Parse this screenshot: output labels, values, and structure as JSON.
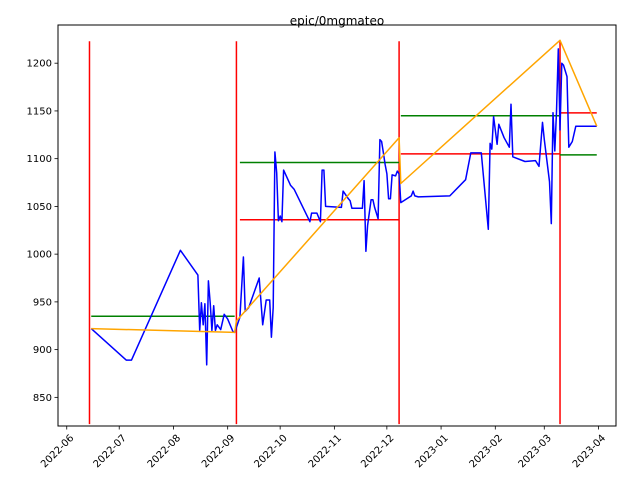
{
  "chart_data": {
    "type": "line",
    "title": "epic/0mgmateo",
    "xlabel": "",
    "ylabel": "",
    "x_axis": {
      "kind": "date",
      "range": [
        "2022-05-27",
        "2023-04-11"
      ],
      "ticks": [
        "2022-06-01",
        "2022-07-01",
        "2022-08-01",
        "2022-09-01",
        "2022-10-01",
        "2022-11-01",
        "2022-12-01",
        "2023-01-01",
        "2023-02-01",
        "2023-03-01",
        "2023-04-01"
      ],
      "tick_labels": [
        "2022-06",
        "2022-07",
        "2022-08",
        "2022-09",
        "2022-10",
        "2022-11",
        "2022-12",
        "2023-01",
        "2023-02",
        "2023-03",
        "2023-04"
      ]
    },
    "y_axis": {
      "range": [
        820,
        1240
      ],
      "ticks": [
        850,
        900,
        950,
        1000,
        1050,
        1100,
        1150,
        1200
      ],
      "tick_labels": [
        "850",
        "900",
        "950",
        "1000",
        "1050",
        "1100",
        "1150",
        "1200"
      ]
    },
    "grid": false,
    "legend": "none",
    "colors": {
      "price": "#0000ff",
      "trend": "#ffa500",
      "segment_boundary": "#ff0000",
      "segment_level_red": "#ff0000",
      "segment_level_green": "#008000"
    },
    "series": [
      {
        "role": "price",
        "color": "#0000ff",
        "points": [
          [
            "2022-06-15",
            922
          ],
          [
            "2022-07-05",
            889
          ],
          [
            "2022-07-08",
            889
          ],
          [
            "2022-08-05",
            1004
          ],
          [
            "2022-08-15",
            978
          ],
          [
            "2022-08-16",
            920
          ],
          [
            "2022-08-17",
            949
          ],
          [
            "2022-08-18",
            926
          ],
          [
            "2022-08-19",
            948
          ],
          [
            "2022-08-20",
            884
          ],
          [
            "2022-08-21",
            972
          ],
          [
            "2022-08-22",
            949
          ],
          [
            "2022-08-23",
            920
          ],
          [
            "2022-08-24",
            946
          ],
          [
            "2022-08-25",
            920
          ],
          [
            "2022-08-26",
            926
          ],
          [
            "2022-08-28",
            921
          ],
          [
            "2022-08-30",
            937
          ],
          [
            "2022-09-01",
            932
          ],
          [
            "2022-09-04",
            919
          ],
          [
            "2022-09-05",
            918
          ],
          [
            "2022-09-08",
            934
          ],
          [
            "2022-09-10",
            997
          ],
          [
            "2022-09-11",
            940
          ],
          [
            "2022-09-13",
            944
          ],
          [
            "2022-09-19",
            975
          ],
          [
            "2022-09-21",
            926
          ],
          [
            "2022-09-23",
            952
          ],
          [
            "2022-09-25",
            952
          ],
          [
            "2022-09-26",
            913
          ],
          [
            "2022-09-27",
            944
          ],
          [
            "2022-09-28",
            1107
          ],
          [
            "2022-09-29",
            1085
          ],
          [
            "2022-09-30",
            1035
          ],
          [
            "2022-10-01",
            1040
          ],
          [
            "2022-10-02",
            1034
          ],
          [
            "2022-10-03",
            1088
          ],
          [
            "2022-10-07",
            1072
          ],
          [
            "2022-10-09",
            1068
          ],
          [
            "2022-10-18",
            1034
          ],
          [
            "2022-10-19",
            1043
          ],
          [
            "2022-10-22",
            1043
          ],
          [
            "2022-10-24",
            1034
          ],
          [
            "2022-10-25",
            1088
          ],
          [
            "2022-10-26",
            1088
          ],
          [
            "2022-10-27",
            1050
          ],
          [
            "2022-11-05",
            1049
          ],
          [
            "2022-11-06",
            1066
          ],
          [
            "2022-11-09",
            1058
          ],
          [
            "2022-11-10",
            1056
          ],
          [
            "2022-11-11",
            1048
          ],
          [
            "2022-11-17",
            1048
          ],
          [
            "2022-11-18",
            1077
          ],
          [
            "2022-11-19",
            1003
          ],
          [
            "2022-11-20",
            1030
          ],
          [
            "2022-11-21",
            1044
          ],
          [
            "2022-11-22",
            1057
          ],
          [
            "2022-11-23",
            1057
          ],
          [
            "2022-11-24",
            1049
          ],
          [
            "2022-11-25",
            1043
          ],
          [
            "2022-11-26",
            1037
          ],
          [
            "2022-11-27",
            1120
          ],
          [
            "2022-11-28",
            1118
          ],
          [
            "2022-11-29",
            1106
          ],
          [
            "2022-11-30",
            1094
          ],
          [
            "2022-12-01",
            1084
          ],
          [
            "2022-12-02",
            1058
          ],
          [
            "2022-12-03",
            1058
          ],
          [
            "2022-12-04",
            1083
          ],
          [
            "2022-12-06",
            1082
          ],
          [
            "2022-12-07",
            1087
          ],
          [
            "2022-12-08",
            1084
          ],
          [
            "2022-12-09",
            1054
          ],
          [
            "2022-12-15",
            1061
          ],
          [
            "2022-12-16",
            1066
          ],
          [
            "2022-12-17",
            1061
          ],
          [
            "2022-12-19",
            1060
          ],
          [
            "2023-01-06",
            1061
          ],
          [
            "2023-01-15",
            1078
          ],
          [
            "2023-01-18",
            1106
          ],
          [
            "2023-01-24",
            1106
          ],
          [
            "2023-01-28",
            1026
          ],
          [
            "2023-01-29",
            1116
          ],
          [
            "2023-01-30",
            1110
          ],
          [
            "2023-01-31",
            1144
          ],
          [
            "2023-02-02",
            1115
          ],
          [
            "2023-02-03",
            1136
          ],
          [
            "2023-02-06",
            1122
          ],
          [
            "2023-02-09",
            1112
          ],
          [
            "2023-02-10",
            1157
          ],
          [
            "2023-02-11",
            1102
          ],
          [
            "2023-02-18",
            1097
          ],
          [
            "2023-02-24",
            1098
          ],
          [
            "2023-02-26",
            1092
          ],
          [
            "2023-02-28",
            1138
          ],
          [
            "2023-03-01",
            1120
          ],
          [
            "2023-03-04",
            1076
          ],
          [
            "2023-03-05",
            1032
          ],
          [
            "2023-03-06",
            1148
          ],
          [
            "2023-03-07",
            1108
          ],
          [
            "2023-03-08",
            1149
          ],
          [
            "2023-03-09",
            1215
          ],
          [
            "2023-03-10",
            1130
          ],
          [
            "2023-03-11",
            1200
          ],
          [
            "2023-03-12",
            1198
          ],
          [
            "2023-03-14",
            1186
          ],
          [
            "2023-03-15",
            1112
          ],
          [
            "2023-03-17",
            1118
          ],
          [
            "2023-03-19",
            1134
          ],
          [
            "2023-03-31",
            1134
          ]
        ]
      },
      {
        "role": "trend",
        "color": "#ffa500",
        "points": [
          [
            "2022-06-15",
            922
          ],
          [
            "2022-09-05",
            918
          ],
          [
            "2022-09-06",
            930
          ],
          [
            "2022-12-08",
            1122
          ],
          [
            "2022-12-09",
            1074
          ],
          [
            "2023-03-10",
            1224
          ],
          [
            "2023-03-31",
            1134
          ]
        ]
      }
    ],
    "horizontal_levels": [
      {
        "color": "#008000",
        "x_start": "2022-06-15",
        "x_end": "2022-09-05",
        "y": 935
      },
      {
        "color": "#008000",
        "x_start": "2022-09-08",
        "x_end": "2022-12-08",
        "y": 1096
      },
      {
        "color": "#ff0000",
        "x_start": "2022-09-08",
        "x_end": "2022-12-08",
        "y": 1036
      },
      {
        "color": "#008000",
        "x_start": "2022-12-09",
        "x_end": "2023-03-10",
        "y": 1145
      },
      {
        "color": "#ff0000",
        "x_start": "2022-12-09",
        "x_end": "2023-03-10",
        "y": 1105
      },
      {
        "color": "#008000",
        "x_start": "2023-03-10",
        "x_end": "2023-03-31",
        "y": 1104
      },
      {
        "color": "#ff0000",
        "x_start": "2023-03-10",
        "x_end": "2023-03-31",
        "y": 1148
      }
    ],
    "vertical_lines": [
      {
        "color": "#ff0000",
        "x": "2022-06-14",
        "y_range": [
          822,
          1223
        ]
      },
      {
        "color": "#ff0000",
        "x": "2022-09-06",
        "y_range": [
          822,
          1223
        ]
      },
      {
        "color": "#ff0000",
        "x": "2022-12-08",
        "y_range": [
          822,
          1223
        ]
      },
      {
        "color": "#ff0000",
        "x": "2023-03-10",
        "y_range": [
          822,
          1223
        ]
      }
    ]
  }
}
